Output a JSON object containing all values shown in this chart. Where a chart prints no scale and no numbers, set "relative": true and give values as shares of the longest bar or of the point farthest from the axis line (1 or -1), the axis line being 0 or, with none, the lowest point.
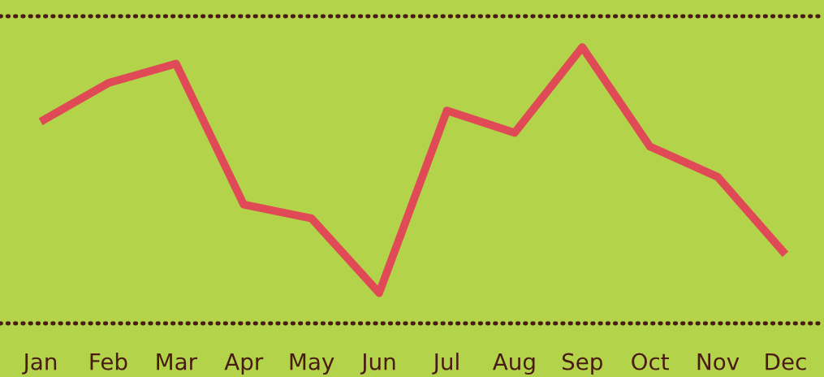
{
  "chart_data": {
    "type": "line",
    "relative": true,
    "categories": [
      "Jan",
      "Feb",
      "Mar",
      "Apr",
      "May",
      "Jun",
      "Jul",
      "Aug",
      "Sep",
      "Oct",
      "Nov",
      "Dec"
    ],
    "series": [
      {
        "color": "#e04a57",
        "values": [
          0.73,
          0.87,
          0.94,
          0.43,
          0.38,
          0.11,
          0.77,
          0.69,
          1.0,
          0.64,
          0.53,
          0.25
        ]
      }
    ],
    "marker": "none",
    "line_style": "solid",
    "grid": false
  }
}
